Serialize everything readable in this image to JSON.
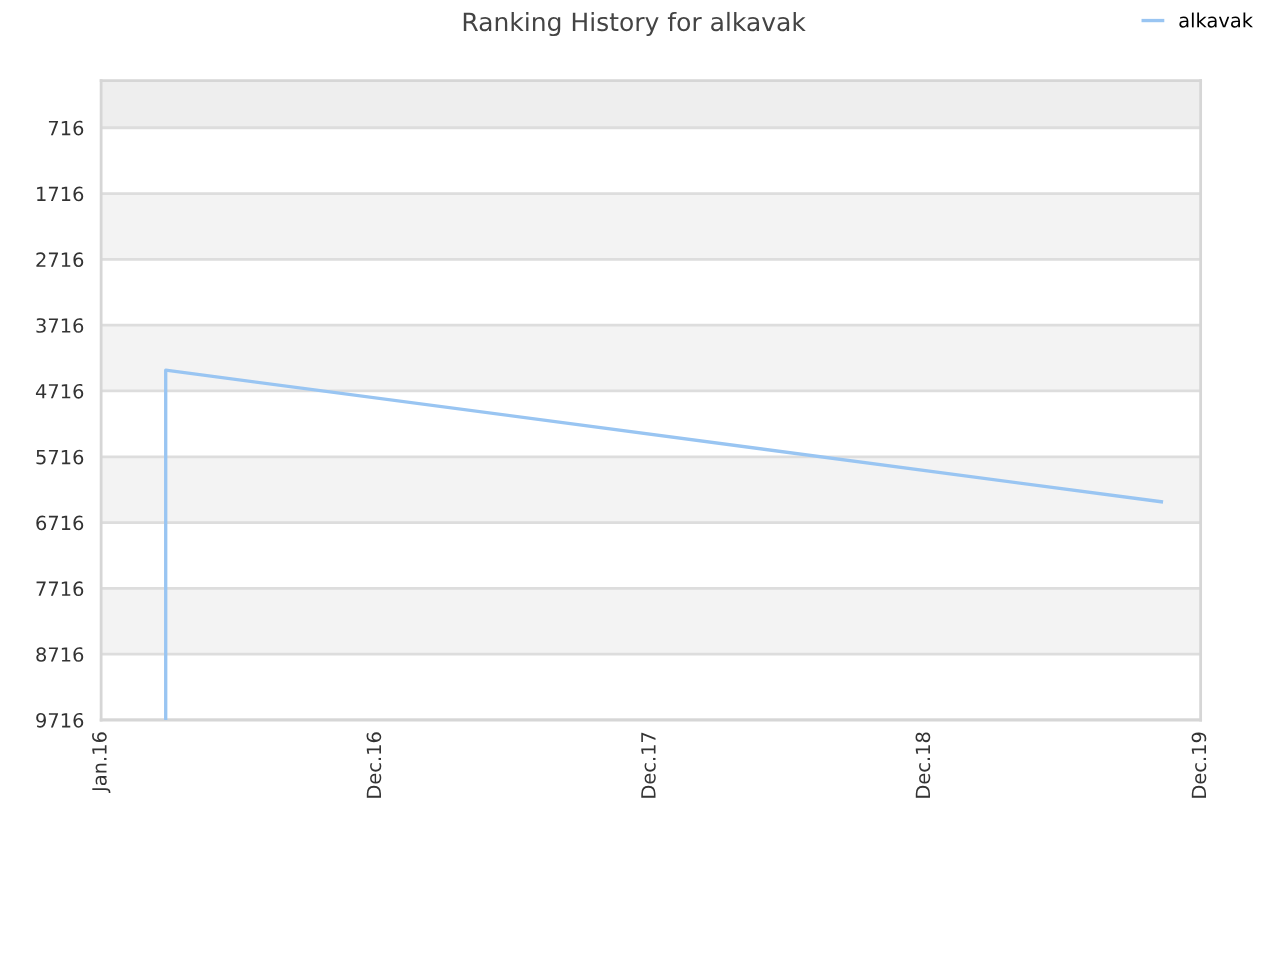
{
  "chart_data": {
    "type": "line",
    "title": "Ranking History for alkavak",
    "series": [
      {
        "name": "alkavak",
        "color": "#99c5f2",
        "x": [
          "2016-03-25",
          "2016-03-25",
          "2019-10-11"
        ],
        "values": [
          9716,
          4400,
          6400
        ]
      }
    ],
    "xlim": [
      "2016-01-01",
      "2019-12-01"
    ],
    "xticks": [
      {
        "value": "2016-01-01",
        "label": "Jan.16"
      },
      {
        "value": "2016-12-23",
        "label": "Dec.16"
      },
      {
        "value": "2017-12-15",
        "label": "Dec.17"
      },
      {
        "value": "2018-12-07",
        "label": "Dec.18"
      },
      {
        "value": "2019-12-01",
        "label": "Dec.19"
      }
    ],
    "ylim": [
      9716,
      0
    ],
    "yticks": [
      716,
      1716,
      2716,
      3716,
      4716,
      5716,
      6716,
      7716,
      8716,
      9716
    ],
    "bands": [
      {
        "axis": "y",
        "from": 0,
        "to": 716,
        "color": "#eeeeee"
      },
      {
        "axis": "y",
        "from": 1716,
        "to": 2716,
        "color": "#f3f3f3"
      },
      {
        "axis": "y",
        "from": 3716,
        "to": 4716,
        "color": "#f3f3f3"
      },
      {
        "axis": "y",
        "from": 5716,
        "to": 6716,
        "color": "#f3f3f3"
      },
      {
        "axis": "y",
        "from": 7716,
        "to": 8716,
        "color": "#f3f3f3"
      }
    ],
    "grid": "y",
    "legend": "top right",
    "marker": "none",
    "line_style": "solid"
  }
}
